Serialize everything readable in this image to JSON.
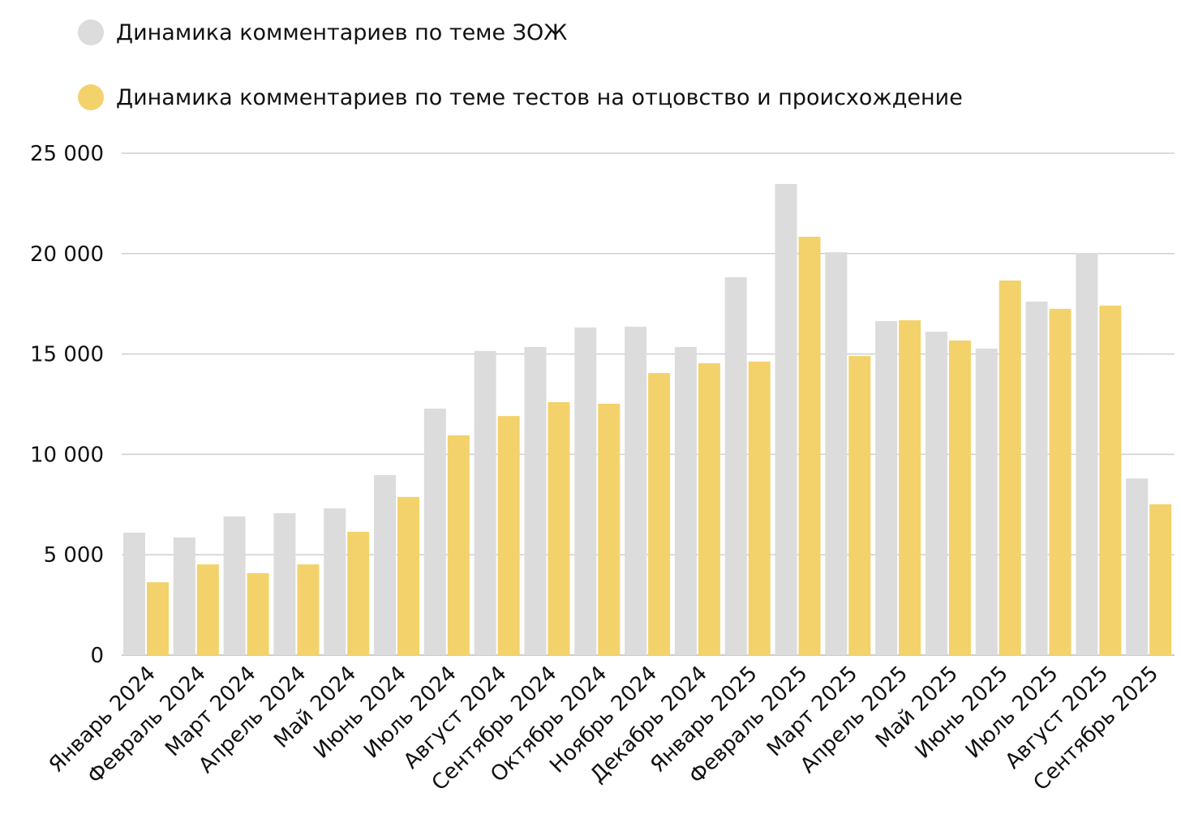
{
  "chart_data": {
    "type": "bar",
    "title": "",
    "xlabel": "",
    "ylabel": "",
    "ylim": [
      0,
      25000
    ],
    "yticks": [
      0,
      5000,
      10000,
      15000,
      20000,
      25000
    ],
    "ytick_labels": [
      "0",
      "5 000",
      "10 000",
      "15 000",
      "20 000",
      "25 000"
    ],
    "grid": true,
    "legend_position": "top-left",
    "categories": [
      "Январь 2024",
      "Февраль 2024",
      "Март 2024",
      "Апрель 2024",
      "Май 2024",
      "Июнь 2024",
      "Июль 2024",
      "Август 2024",
      "Сентябрь 2024",
      "Октябрь 2024",
      "Ноябрь 2024",
      "Декабрь 2024",
      "Январь 2025",
      "Февраль 2025",
      "Март 2025",
      "Апрель 2025",
      "Май 2025",
      "Июнь 2025",
      "Июль 2025",
      "Август 2025",
      "Сентябрь 2025"
    ],
    "series": [
      {
        "name": "Динамика комментариев по теме ЗОЖ",
        "color": "#dcdcdc",
        "values": [
          6100,
          5860,
          6910,
          7070,
          7310,
          8970,
          12280,
          15150,
          15350,
          16320,
          16360,
          15350,
          18820,
          23470,
          20070,
          16640,
          16110,
          15270,
          17610,
          20030,
          8800
        ]
      },
      {
        "name": "Динамика комментариев по теме тестов на отцовство и происхождение",
        "color": "#f3d26c",
        "values": [
          3630,
          4520,
          4080,
          4520,
          6140,
          7880,
          10950,
          11910,
          12600,
          12520,
          14050,
          14540,
          14620,
          20840,
          14900,
          16680,
          15670,
          18660,
          17250,
          17410,
          7510
        ]
      }
    ]
  }
}
